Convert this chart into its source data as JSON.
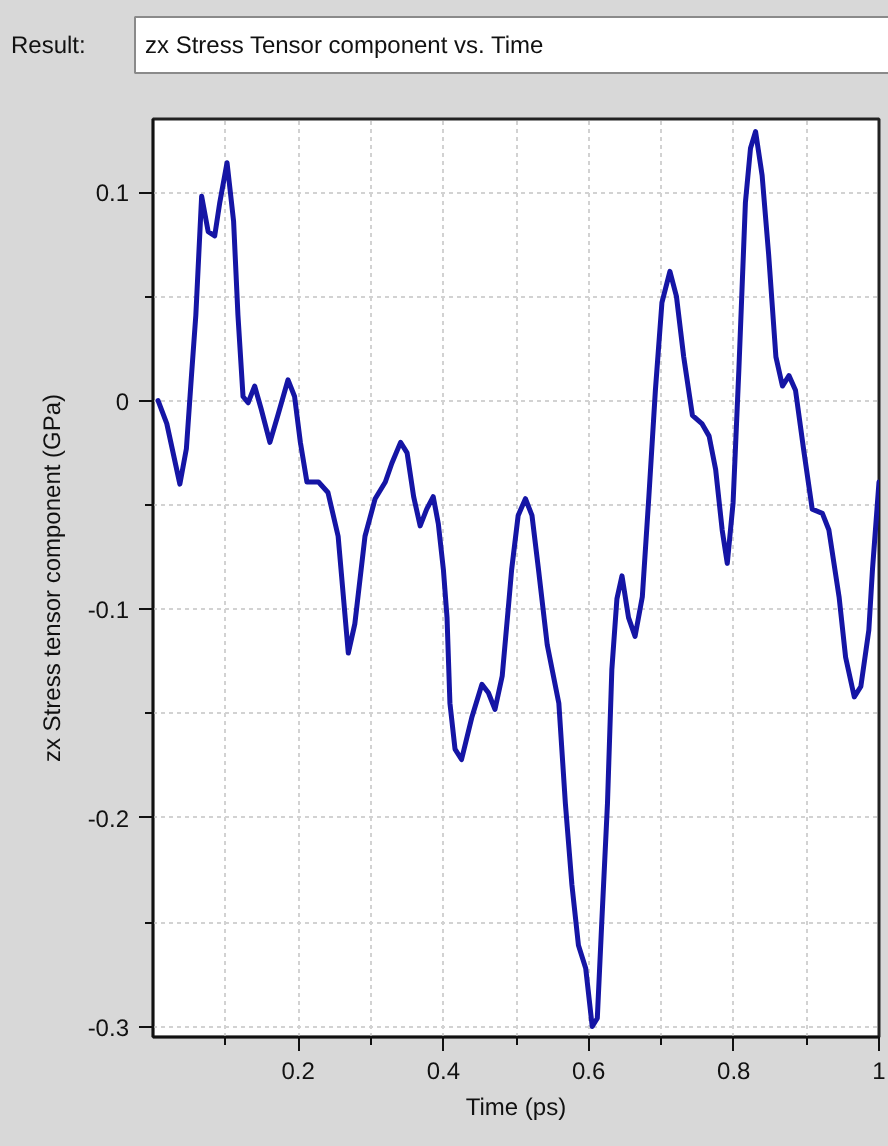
{
  "chart_data": {
    "type": "line",
    "title": "zx Stress Tensor component vs. Time",
    "xlabel": "Time (ps)",
    "ylabel": "zx Stress tensor component (GPa)",
    "annotations": [
      "Result:"
    ],
    "x": [
      0.007,
      0.019,
      0.037,
      0.046,
      0.053,
      0.059,
      0.067,
      0.076,
      0.085,
      0.092,
      0.102,
      0.111,
      0.117,
      0.124,
      0.131,
      0.14,
      0.149,
      0.161,
      0.172,
      0.186,
      0.195,
      0.203,
      0.212,
      0.228,
      0.241,
      0.255,
      0.269,
      0.278,
      0.292,
      0.306,
      0.32,
      0.329,
      0.341,
      0.35,
      0.359,
      0.368,
      0.377,
      0.386,
      0.393,
      0.4,
      0.405,
      0.409,
      0.416,
      0.425,
      0.439,
      0.453,
      0.462,
      0.471,
      0.481,
      0.49,
      0.494,
      0.503,
      0.513,
      0.522,
      0.531,
      0.543,
      0.559,
      0.568,
      0.577,
      0.586,
      0.596,
      0.605,
      0.612,
      0.618,
      0.626,
      0.632,
      0.639,
      0.646,
      0.655,
      0.664,
      0.674,
      0.683,
      0.692,
      0.701,
      0.712,
      0.721,
      0.731,
      0.743,
      0.756,
      0.766,
      0.775,
      0.784,
      0.791,
      0.799,
      0.807,
      0.816,
      0.823,
      0.83,
      0.839,
      0.848,
      0.858,
      0.867,
      0.876,
      0.885,
      0.896,
      0.908,
      0.922,
      0.931,
      0.945,
      0.954,
      0.966,
      0.975,
      0.986,
      0.991,
      1.0
    ],
    "series": [
      {
        "color": "#1515a5",
        "values": [
          0.0,
          -0.011,
          -0.04,
          -0.023,
          0.012,
          0.041,
          0.098,
          0.081,
          0.079,
          0.095,
          0.114,
          0.086,
          0.041,
          0.002,
          -0.001,
          0.007,
          -0.004,
          -0.02,
          -0.007,
          0.01,
          0.002,
          -0.02,
          -0.039,
          -0.039,
          -0.044,
          -0.065,
          -0.121,
          -0.107,
          -0.065,
          -0.047,
          -0.039,
          -0.03,
          -0.02,
          -0.025,
          -0.046,
          -0.06,
          -0.052,
          -0.046,
          -0.059,
          -0.081,
          -0.104,
          -0.145,
          -0.167,
          -0.172,
          -0.152,
          -0.136,
          -0.14,
          -0.148,
          -0.132,
          -0.097,
          -0.081,
          -0.055,
          -0.047,
          -0.055,
          -0.081,
          -0.117,
          -0.145,
          -0.193,
          -0.232,
          -0.261,
          -0.272,
          -0.3,
          -0.296,
          -0.251,
          -0.193,
          -0.129,
          -0.095,
          -0.084,
          -0.104,
          -0.113,
          -0.094,
          -0.046,
          0.005,
          0.047,
          0.062,
          0.05,
          0.021,
          -0.007,
          -0.011,
          -0.017,
          -0.033,
          -0.062,
          -0.078,
          -0.049,
          0.015,
          0.095,
          0.121,
          0.129,
          0.108,
          0.07,
          0.021,
          0.007,
          0.012,
          0.005,
          -0.023,
          -0.052,
          -0.054,
          -0.062,
          -0.094,
          -0.123,
          -0.142,
          -0.137,
          -0.11,
          -0.081,
          -0.039
        ]
      }
    ],
    "xlim": [
      0,
      1
    ],
    "ylim": [
      -0.305,
      0.135
    ],
    "xticks": [
      {
        "value": 0.1,
        "label": null
      },
      0.2,
      {
        "value": 0.3,
        "label": null
      },
      0.4,
      {
        "value": 0.5,
        "label": null
      },
      0.6,
      {
        "value": 0.7,
        "label": null
      },
      0.8,
      {
        "value": 0.9,
        "label": null
      },
      1
    ],
    "yticks": [
      -0.3,
      {
        "value": -0.25,
        "label": null
      },
      -0.2,
      {
        "value": -0.15,
        "label": null
      },
      -0.1,
      {
        "value": -0.05,
        "label": null
      },
      0,
      {
        "value": 0.05,
        "label": null
      },
      0.1
    ],
    "grid": true,
    "line_style": "solid"
  }
}
